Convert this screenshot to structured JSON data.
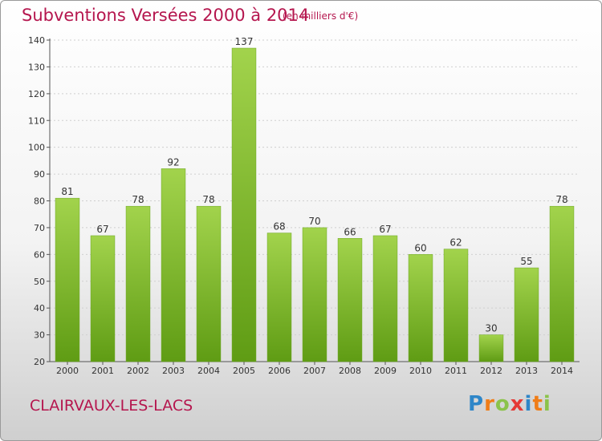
{
  "header": {
    "title": "Subventions Versées 2000 à 2014",
    "subtitle": "(en milliers d'€)"
  },
  "footer": {
    "city": "CLAIRVAUX-LES-LACS",
    "logo_letters": [
      "P",
      "r",
      "o",
      "x",
      "i",
      "t",
      "i"
    ],
    "logo_colors": [
      "#2e86c8",
      "#f07d18",
      "#8bc34a",
      "#e53935",
      "#2e86c8",
      "#f07d18",
      "#8bc34a"
    ]
  },
  "chart_data": {
    "type": "bar",
    "categories": [
      "2000",
      "2001",
      "2002",
      "2003",
      "2004",
      "2005",
      "2006",
      "2007",
      "2008",
      "2009",
      "2010",
      "2011",
      "2012",
      "2013",
      "2014"
    ],
    "values": [
      81,
      67,
      78,
      92,
      78,
      137,
      68,
      70,
      66,
      67,
      60,
      62,
      30,
      55,
      78
    ],
    "ylim": [
      20,
      140
    ],
    "yticks": [
      20,
      30,
      40,
      50,
      60,
      70,
      80,
      90,
      100,
      110,
      120,
      130,
      140
    ],
    "grid": true,
    "bar_color_top": "#a2d34c",
    "bar_color_bottom": "#5f9c14"
  }
}
